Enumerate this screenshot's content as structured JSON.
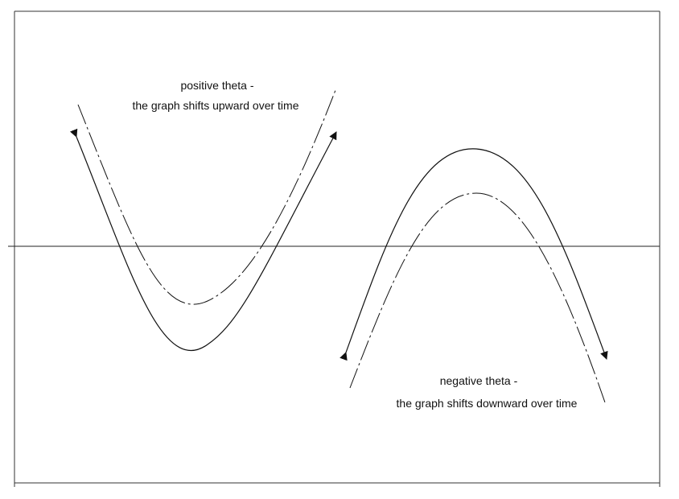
{
  "annotations": {
    "positive": {
      "line1": "positive theta -",
      "line2": "the graph shifts upward over time"
    },
    "negative": {
      "line1": "negative theta -",
      "line2": "the graph shifts downward over time"
    }
  },
  "colors": {
    "background": "#ffffff",
    "ink": "#111111"
  }
}
